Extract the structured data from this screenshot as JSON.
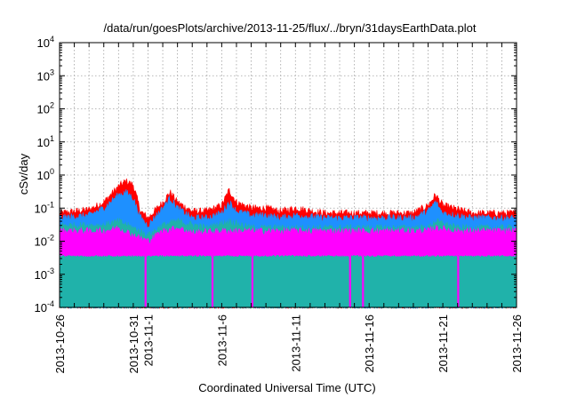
{
  "chart_data": {
    "type": "area",
    "title": "/data/run/goesPlots/archive/2013-11-25/flux/../bryn/31daysEarthData.plot",
    "xlabel": "Coordinated Universal Time (UTC)",
    "ylabel": "cSv/day",
    "yscale": "log",
    "ylim": [
      0.0001,
      10000
    ],
    "xlim": [
      "2013-10-26",
      "2013-11-26"
    ],
    "grid": true,
    "y_ticks": [
      {
        "base": "10",
        "exp": "-4",
        "value": 0.0001
      },
      {
        "base": "10",
        "exp": "-3",
        "value": 0.001
      },
      {
        "base": "10",
        "exp": "-2",
        "value": 0.01
      },
      {
        "base": "10",
        "exp": "-1",
        "value": 0.1
      },
      {
        "base": "10",
        "exp": "0",
        "value": 1
      },
      {
        "base": "10",
        "exp": "1",
        "value": 10
      },
      {
        "base": "10",
        "exp": "2",
        "value": 100
      },
      {
        "base": "10",
        "exp": "3",
        "value": 1000
      },
      {
        "base": "10",
        "exp": "4",
        "value": 10000
      }
    ],
    "x_ticks": [
      {
        "label": "2013-10-26",
        "date": "2013-10-26"
      },
      {
        "label": "2013-10-31",
        "date": "2013-10-31"
      },
      {
        "label": "2013-11-1",
        "date": "2013-11-01"
      },
      {
        "label": "2013-11-6",
        "date": "2013-11-06"
      },
      {
        "label": "2013-11-11",
        "date": "2013-11-11"
      },
      {
        "label": "2013-11-16",
        "date": "2013-11-16"
      },
      {
        "label": "2013-11-21",
        "date": "2013-11-21"
      },
      {
        "label": "2013-11-26",
        "date": "2013-11-26"
      }
    ],
    "series": [
      {
        "color": "#ff0000",
        "x": [
          "2013-10-26",
          "2013-10-28",
          "2013-10-29",
          "2013-10-30",
          "2013-10-30T12:00",
          "2013-10-31",
          "2013-10-31T12:00",
          "2013-11-01",
          "2013-11-02",
          "2013-11-02T12:00",
          "2013-11-03",
          "2013-11-04",
          "2013-11-05",
          "2013-11-06",
          "2013-11-06T12:00",
          "2013-11-07",
          "2013-11-08",
          "2013-11-09",
          "2013-11-10",
          "2013-11-11",
          "2013-11-13",
          "2013-11-15",
          "2013-11-17",
          "2013-11-19",
          "2013-11-20",
          "2013-11-20T12:00",
          "2013-11-21",
          "2013-11-23",
          "2013-11-26"
        ],
        "values": [
          0.07,
          0.09,
          0.15,
          0.45,
          0.65,
          0.5,
          0.08,
          0.05,
          0.15,
          0.3,
          0.15,
          0.08,
          0.08,
          0.12,
          0.35,
          0.15,
          0.1,
          0.1,
          0.08,
          0.1,
          0.07,
          0.07,
          0.07,
          0.07,
          0.12,
          0.25,
          0.12,
          0.07,
          0.07
        ]
      },
      {
        "color": "#1e90ff",
        "x": [
          "2013-10-26",
          "2013-10-28",
          "2013-10-29",
          "2013-10-30",
          "2013-10-30T12:00",
          "2013-10-31",
          "2013-10-31T12:00",
          "2013-11-01",
          "2013-11-02",
          "2013-11-02T12:00",
          "2013-11-03",
          "2013-11-04",
          "2013-11-05",
          "2013-11-06",
          "2013-11-06T12:00",
          "2013-11-07",
          "2013-11-08",
          "2013-11-09",
          "2013-11-10",
          "2013-11-11",
          "2013-11-13",
          "2013-11-15",
          "2013-11-17",
          "2013-11-19",
          "2013-11-20",
          "2013-11-20T12:00",
          "2013-11-21",
          "2013-11-23",
          "2013-11-26"
        ],
        "values": [
          0.05,
          0.06,
          0.1,
          0.25,
          0.3,
          0.2,
          0.05,
          0.03,
          0.1,
          0.2,
          0.1,
          0.05,
          0.05,
          0.07,
          0.15,
          0.08,
          0.06,
          0.06,
          0.05,
          0.06,
          0.05,
          0.05,
          0.05,
          0.05,
          0.08,
          0.15,
          0.07,
          0.05,
          0.05
        ]
      },
      {
        "color": "#20b2aa",
        "x": [
          "2013-10-26",
          "2013-10-29",
          "2013-10-30",
          "2013-10-31",
          "2013-11-01",
          "2013-11-02",
          "2013-11-03",
          "2013-11-05",
          "2013-11-06T12:00",
          "2013-11-08",
          "2013-11-12",
          "2013-11-16",
          "2013-11-20",
          "2013-11-20T12:00",
          "2013-11-22",
          "2013-11-26"
        ],
        "values": [
          0.03,
          0.03,
          0.04,
          0.025,
          0.015,
          0.03,
          0.04,
          0.025,
          0.04,
          0.025,
          0.025,
          0.025,
          0.025,
          0.04,
          0.025,
          0.025
        ]
      },
      {
        "color": "#ff00ff",
        "x": [
          "2013-10-26",
          "2013-10-28",
          "2013-10-29",
          "2013-10-30",
          "2013-10-31",
          "2013-11-01",
          "2013-11-02",
          "2013-11-03",
          "2013-11-04",
          "2013-11-06",
          "2013-11-08",
          "2013-11-12",
          "2013-11-16",
          "2013-11-20",
          "2013-11-20T12:00",
          "2013-11-22",
          "2013-11-26"
        ],
        "values": [
          0.02,
          0.02,
          0.02,
          0.025,
          0.015,
          0.01,
          0.02,
          0.025,
          0.018,
          0.02,
          0.02,
          0.02,
          0.02,
          0.02,
          0.025,
          0.02,
          0.02
        ],
        "floor": 0.0037,
        "spikes_to_axis": [
          "2013-10-31T20:00",
          "2013-11-05T09:00",
          "2013-11-08T02:00",
          "2013-11-14T17:00",
          "2013-11-15T14:00",
          "2013-11-22T01:00"
        ]
      }
    ]
  }
}
